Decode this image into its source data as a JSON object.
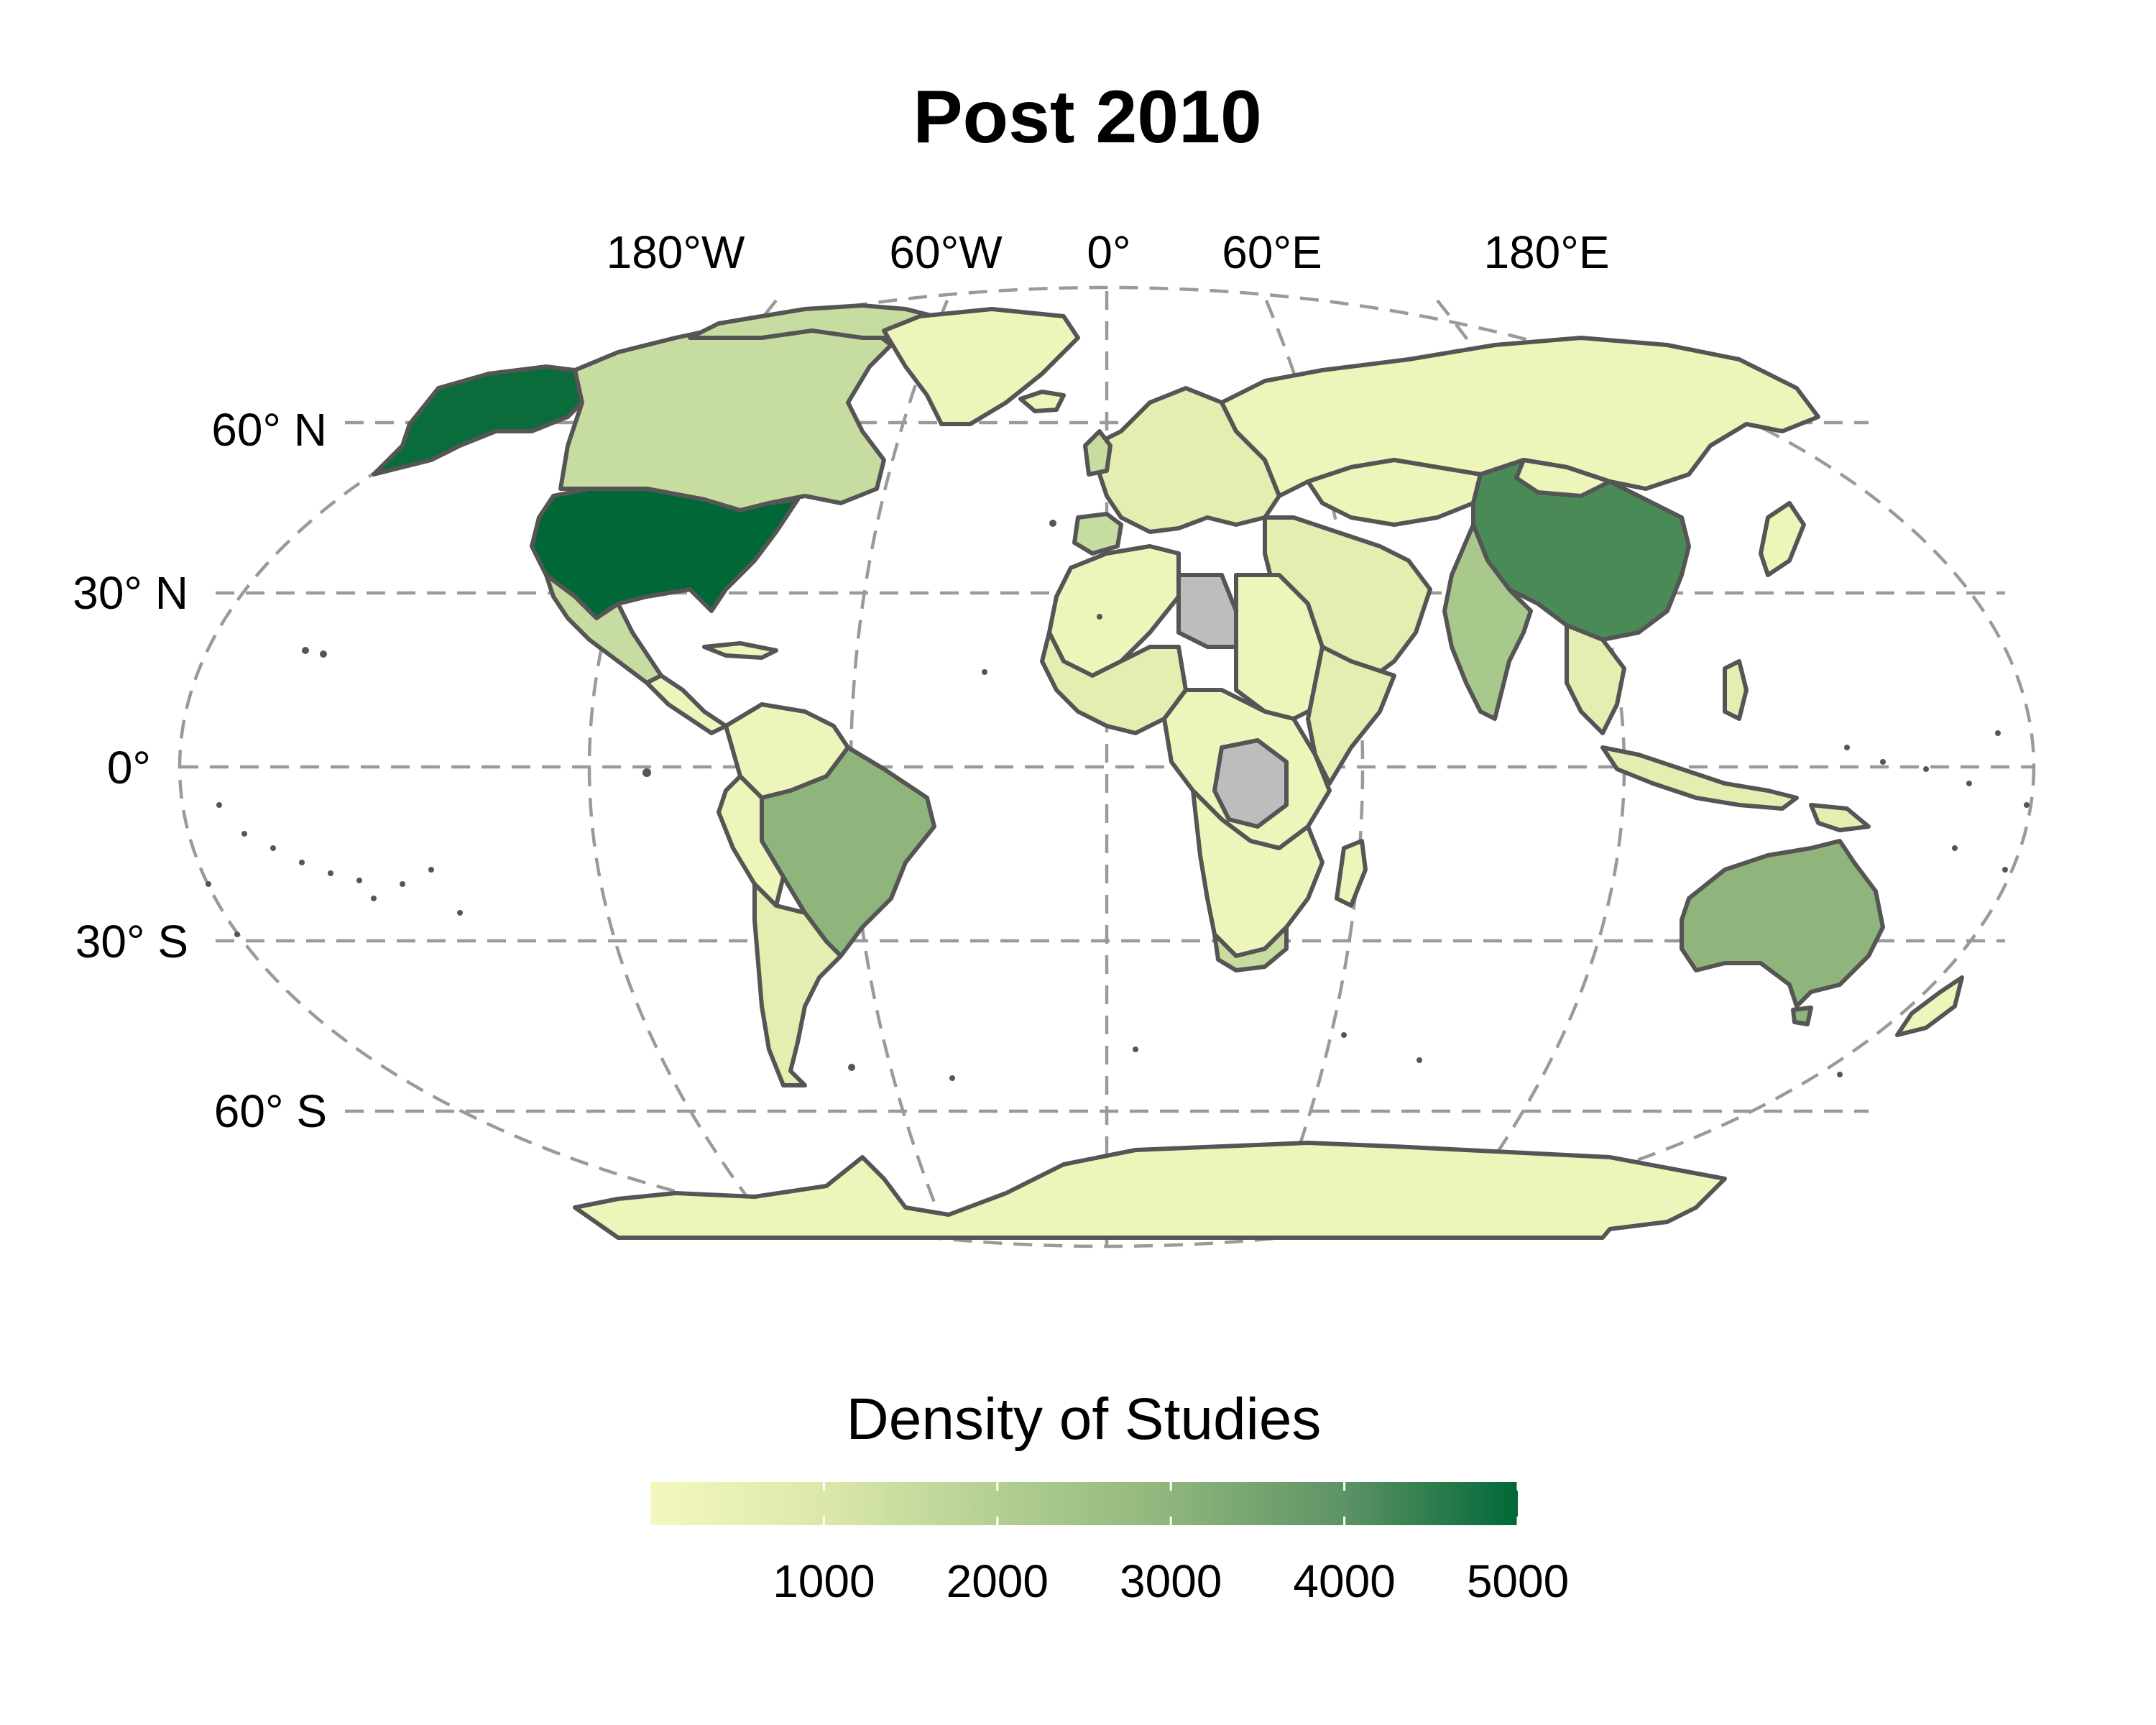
{
  "title": "Post 2010",
  "graticule_labels": {
    "longitude": [
      "180°W",
      "60°W",
      "0°",
      "60°E",
      "180°E"
    ],
    "latitude": [
      "60° N",
      "30° N",
      "0°",
      "30° S",
      "60° S"
    ]
  },
  "legend": {
    "title": "Density of Studies",
    "ticks": [
      "1000",
      "2000",
      "3000",
      "4000",
      "5000"
    ],
    "color_low": "#f5f8be",
    "color_mid": "#8fb57c",
    "color_high": "#006837",
    "no_data_color": "#bdbdbd",
    "range": [
      0,
      5000
    ]
  },
  "colors": {
    "border": "#555555",
    "graticule": "#9a9a9a",
    "background": "#ffffff"
  }
}
